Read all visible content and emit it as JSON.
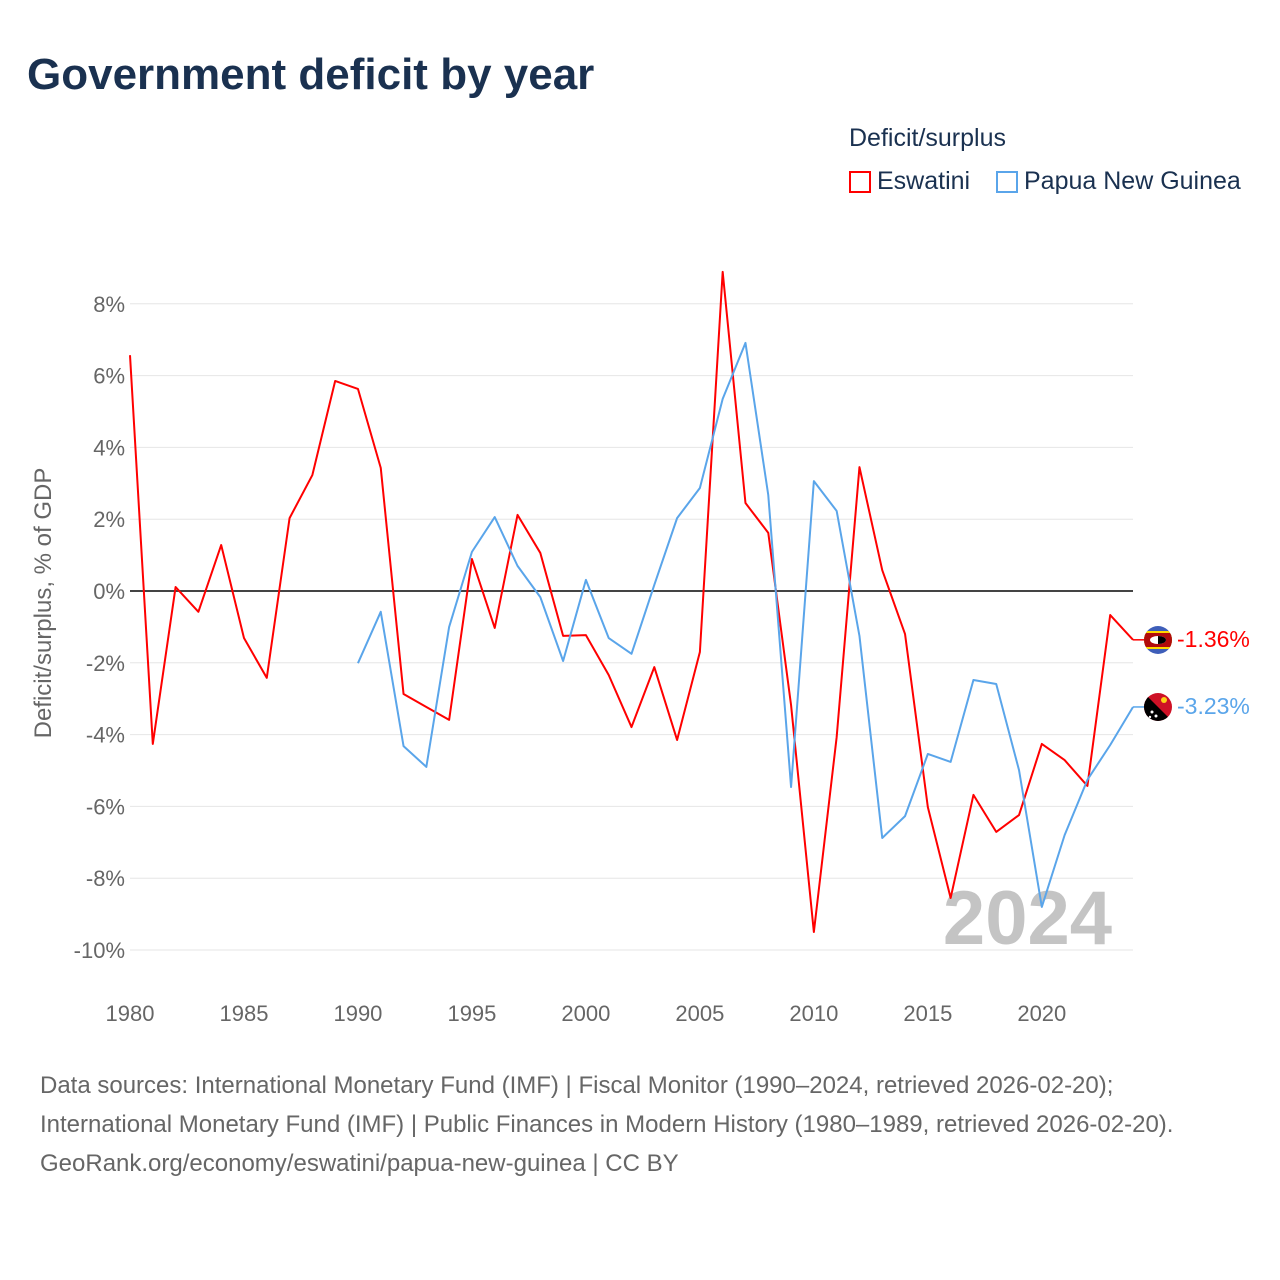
{
  "title": "Government deficit by year",
  "legend": {
    "title": "Deficit/surplus",
    "entries": [
      {
        "name": "Eswatini",
        "color": "#ff0000"
      },
      {
        "name": "Papua New Guinea",
        "color": "#5aa5ea"
      }
    ]
  },
  "watermark_year": "2024",
  "end_labels": {
    "eswatini": "-1.36%",
    "png": "-3.23%"
  },
  "footer": {
    "line1": "Data sources: International Monetary Fund (IMF) | Fiscal Monitor (1990–2024, retrieved 2026-02-20); International Monetary Fund (IMF) | Public Finances in Modern History (1980–1989, retrieved 2026-02-20).",
    "line2": "GeoRank.org/economy/eswatini/papua-new-guinea | CC BY"
  },
  "chart_data": {
    "type": "line",
    "title": "Government deficit by year",
    "xlabel": "",
    "ylabel": "Deficit/surplus, % of GDP",
    "xlim": [
      1980,
      2024
    ],
    "ylim": [
      -11,
      9.5
    ],
    "xticks": [
      1980,
      1985,
      1990,
      1995,
      2000,
      2005,
      2010,
      2015,
      2020
    ],
    "yticks": [
      -10,
      -8,
      -6,
      -4,
      -2,
      0,
      2,
      4,
      6,
      8
    ],
    "ytick_labels": [
      "-10%",
      "-8%",
      "-6%",
      "-4%",
      "-2%",
      "0%",
      "2%",
      "4%",
      "6%",
      "8%"
    ],
    "grid": true,
    "legend_position": "top-right",
    "series": [
      {
        "name": "Eswatini",
        "color": "#ff0000",
        "x_start": 1980,
        "values": [
          6.57,
          -4.26,
          0.11,
          -0.58,
          1.28,
          -1.31,
          -2.42,
          2.03,
          3.23,
          5.85,
          5.63,
          3.43,
          -2.87,
          -3.23,
          -3.59,
          0.89,
          -1.03,
          2.12,
          1.06,
          -1.25,
          -1.23,
          -2.34,
          -3.79,
          -2.12,
          -4.15,
          -1.7,
          8.89,
          2.45,
          1.62,
          -3.18,
          -9.5,
          -4.07,
          3.45,
          0.58,
          -1.2,
          -6.02,
          -8.55,
          -5.68,
          -6.71,
          -6.24,
          -4.26,
          -4.71,
          -5.43,
          -0.67,
          -1.36
        ]
      },
      {
        "name": "Papua New Guinea",
        "color": "#5aa5ea",
        "x_start": 1990,
        "values": [
          -2.01,
          -0.58,
          -4.32,
          -4.9,
          -1.0,
          1.09,
          2.06,
          0.7,
          -0.17,
          -1.95,
          0.31,
          -1.31,
          -1.75,
          0.17,
          2.03,
          2.87,
          5.35,
          6.91,
          2.67,
          -5.46,
          3.06,
          2.23,
          -1.25,
          -6.88,
          -6.27,
          -4.54,
          -4.76,
          -2.48,
          -2.59,
          -4.99,
          -8.8,
          -6.8,
          -5.26,
          -4.29,
          -3.23
        ]
      }
    ]
  }
}
